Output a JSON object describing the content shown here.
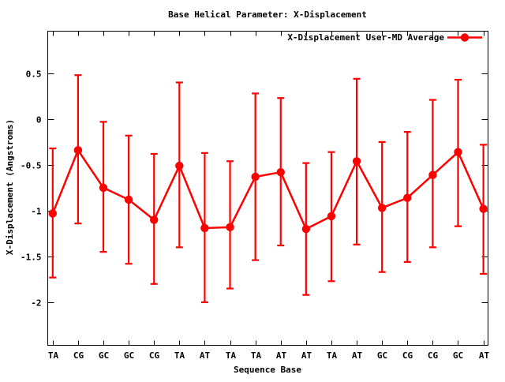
{
  "chart_data": {
    "type": "line",
    "title": "Base  Helical Parameter: X-Displacement",
    "xlabel": "Sequence Base",
    "ylabel": "X-Displacement (Angstroms)",
    "legend": {
      "label": "X-Displacement User-MD Average",
      "position": "top-right-inside",
      "marker": "filled-circle-on-line"
    },
    "categories": [
      "TA",
      "CG",
      "GC",
      "GC",
      "CG",
      "TA",
      "AT",
      "TA",
      "TA",
      "AT",
      "AT",
      "TA",
      "AT",
      "GC",
      "CG",
      "CG",
      "GC",
      "AT"
    ],
    "series": [
      {
        "name": "X-Displacement User-MD Average",
        "values": [
          -1.03,
          -0.34,
          -0.75,
          -0.88,
          -1.1,
          -0.51,
          -1.19,
          -1.18,
          -0.63,
          -0.58,
          -1.2,
          -1.06,
          -0.46,
          -0.97,
          -0.86,
          -0.61,
          -0.36,
          -0.98
        ],
        "error_high": [
          -0.32,
          0.48,
          -0.03,
          -0.18,
          -0.38,
          0.4,
          -0.37,
          -0.46,
          0.28,
          0.23,
          -0.48,
          -0.36,
          0.44,
          -0.25,
          -0.14,
          0.21,
          0.43,
          -0.28
        ],
        "error_low": [
          -1.73,
          -1.14,
          -1.45,
          -1.58,
          -1.8,
          -1.4,
          -2.0,
          -1.85,
          -1.54,
          -1.38,
          -1.92,
          -1.77,
          -1.37,
          -1.67,
          -1.56,
          -1.4,
          -1.17,
          -1.69
        ]
      }
    ],
    "ylim": [
      -2.47,
      0.96
    ],
    "yticks": [
      0.5,
      0,
      -0.5,
      -1,
      -1.5,
      -2
    ],
    "grid": false,
    "marker": "filled-circle",
    "colors": {
      "series": "#ff0000",
      "axis": "#000000",
      "text": "#000000",
      "background": "#ffffff"
    }
  }
}
